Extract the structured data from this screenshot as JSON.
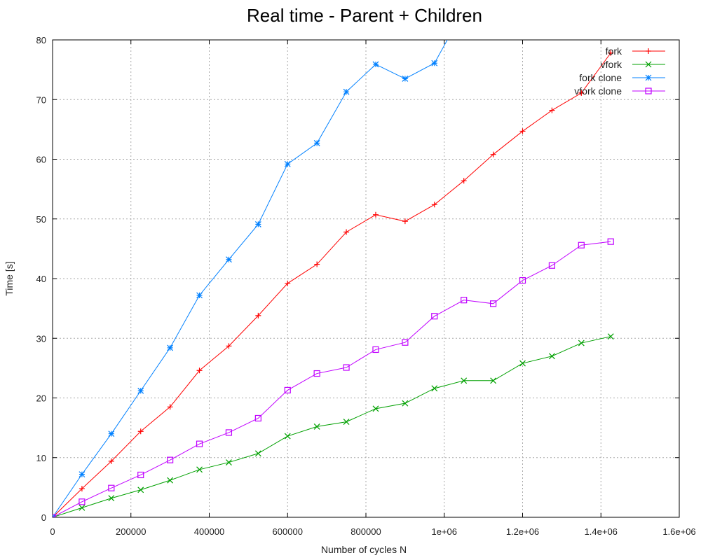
{
  "chart_data": {
    "type": "line",
    "title": "Real time - Parent + Children",
    "xlabel": "Number of cycles N",
    "ylabel": "Time [s]",
    "xlim": [
      0,
      1600000
    ],
    "ylim": [
      0,
      80
    ],
    "x_ticks": [
      0,
      200000,
      400000,
      600000,
      800000,
      1000000,
      1200000,
      1400000,
      1600000
    ],
    "x_tick_labels": [
      "0",
      "200000",
      "400000",
      "600000",
      "800000",
      "1e+06",
      "1.2e+06",
      "1.4e+06",
      "1.6e+06"
    ],
    "y_ticks": [
      0,
      10,
      20,
      30,
      40,
      50,
      60,
      70,
      80
    ],
    "y_tick_labels": [
      "0",
      "10",
      "20",
      "30",
      "40",
      "50",
      "60",
      "70",
      "80"
    ],
    "grid": true,
    "legend_position": "top-right",
    "x": [
      0,
      75000,
      150000,
      225000,
      300000,
      375000,
      450000,
      525000,
      600000,
      675000,
      750000,
      825000,
      900000,
      975000,
      1050000,
      1125000,
      1200000,
      1275000,
      1350000,
      1425000
    ],
    "series": [
      {
        "name": "fork",
        "color": "#ff0000",
        "marker": "plus",
        "values": [
          0,
          4.8,
          9.4,
          14.4,
          18.5,
          24.6,
          28.7,
          33.8,
          39.2,
          42.4,
          47.8,
          50.7,
          49.6,
          52.4,
          56.4,
          60.8,
          64.7,
          68.2,
          71.1,
          77.8
        ]
      },
      {
        "name": "vfork",
        "color": "#00a000",
        "marker": "cross",
        "values": [
          0,
          1.6,
          3.2,
          4.6,
          6.2,
          8.0,
          9.2,
          10.7,
          13.6,
          15.2,
          16.0,
          18.2,
          19.1,
          21.6,
          22.9,
          22.9,
          25.8,
          27.0,
          29.2,
          30.3
        ]
      },
      {
        "name": "fork clone",
        "color": "#0080ff",
        "marker": "star",
        "values": [
          0,
          7.2,
          14.0,
          21.2,
          28.4,
          37.2,
          43.2,
          49.1,
          59.2,
          62.7,
          71.3,
          75.9,
          73.5,
          76.1,
          85.0,
          null,
          null,
          null,
          null,
          null
        ]
      },
      {
        "name": "vfork clone",
        "color": "#c000ff",
        "marker": "square",
        "values": [
          0,
          2.6,
          4.9,
          7.1,
          9.6,
          12.3,
          14.2,
          16.6,
          21.3,
          24.1,
          25.1,
          28.1,
          29.3,
          33.7,
          36.4,
          35.8,
          39.7,
          42.2,
          45.6,
          46.2
        ]
      }
    ]
  }
}
